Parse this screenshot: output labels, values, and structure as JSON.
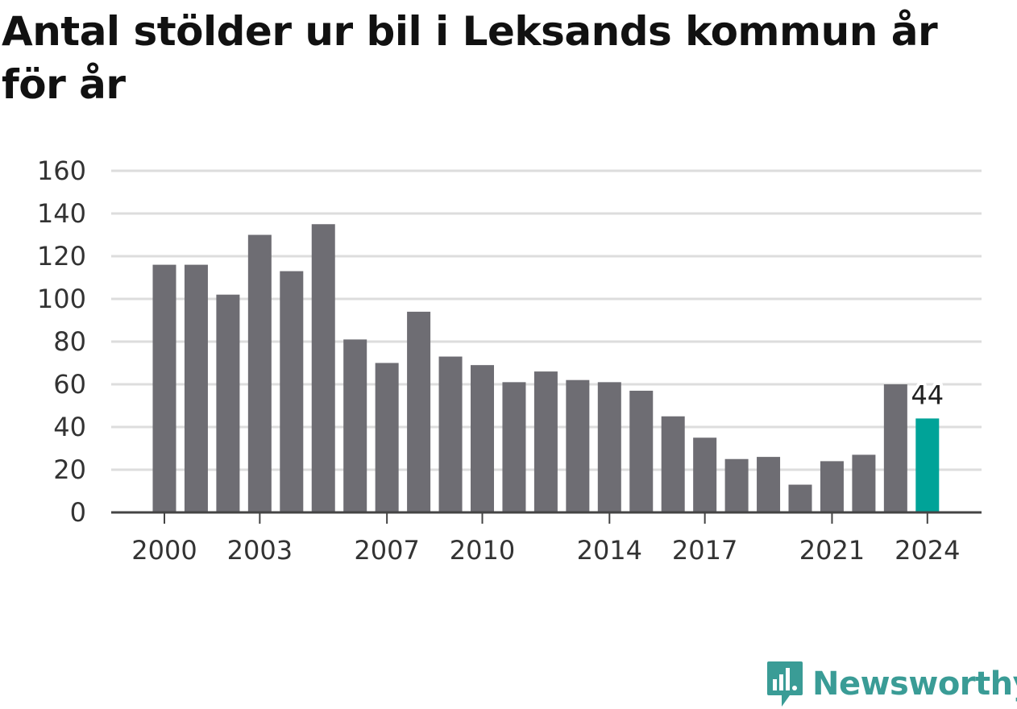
{
  "title": "Antal stölder ur bil i Leksands kommun år för år",
  "brand": {
    "name": "Newsworthy",
    "color": "#3a9c96"
  },
  "colors": {
    "bar": "#6e6d73",
    "highlight": "#00a398",
    "grid": "#dddddd",
    "axis": "#444444"
  },
  "chart_data": {
    "type": "bar",
    "title": "Antal stölder ur bil i Leksands kommun år för år",
    "xlabel": "",
    "ylabel": "",
    "categories": [
      "2000",
      "2001",
      "2002",
      "2003",
      "2004",
      "2005",
      "2006",
      "2007",
      "2008",
      "2009",
      "2010",
      "2011",
      "2012",
      "2013",
      "2014",
      "2015",
      "2016",
      "2017",
      "2018",
      "2019",
      "2020",
      "2021",
      "2022",
      "2023",
      "2024"
    ],
    "values": [
      116,
      116,
      102,
      130,
      113,
      135,
      81,
      70,
      94,
      73,
      69,
      61,
      66,
      62,
      61,
      57,
      45,
      35,
      25,
      26,
      13,
      24,
      27,
      60,
      44
    ],
    "ylim": [
      0,
      160
    ],
    "yticks": [
      "0",
      "20",
      "40",
      "60",
      "80",
      "100",
      "120",
      "140",
      "160"
    ],
    "xticks": [
      "2000",
      "2003",
      "2007",
      "2010",
      "2014",
      "2017",
      "2021",
      "2024"
    ],
    "highlight": {
      "category": "2024",
      "label": "44"
    },
    "grid": true,
    "legend": "none"
  }
}
